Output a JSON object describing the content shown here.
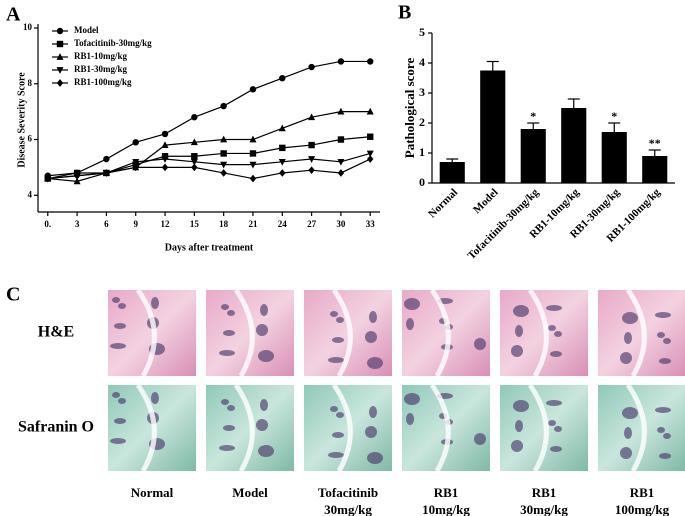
{
  "chart_data": [
    {
      "type": "line",
      "panel_label": "A",
      "xlabel": "Days after treatment",
      "ylabel": "Disease Severity Score",
      "x": [
        0,
        3,
        6,
        9,
        12,
        15,
        18,
        21,
        24,
        27,
        30,
        33
      ],
      "xlim": [
        -1,
        34
      ],
      "xticks": [
        {
          "value": 0,
          "label": "0."
        },
        3,
        6,
        9,
        12,
        15,
        18,
        21,
        24,
        27,
        30,
        33
      ],
      "ylim": [
        3.4,
        10
      ],
      "yticks": [
        4,
        6,
        8,
        10
      ],
      "legend": "upper left",
      "series": [
        {
          "name": "Model",
          "color": "#000000",
          "marker": "circle",
          "values": [
            4.7,
            4.8,
            5.3,
            5.9,
            6.2,
            6.8,
            7.2,
            7.8,
            8.2,
            8.6,
            8.8,
            8.8
          ]
        },
        {
          "name": "Tofacitinib-30mg/kg",
          "color": "#000000",
          "marker": "square",
          "values": [
            4.6,
            4.8,
            4.8,
            5.1,
            5.4,
            5.4,
            5.5,
            5.5,
            5.7,
            5.8,
            6.0,
            6.1
          ]
        },
        {
          "name": "RB1-10mg/kg",
          "color": "#000000",
          "marker": "triangle-up",
          "values": [
            4.6,
            4.5,
            4.8,
            5.0,
            5.8,
            5.9,
            6.0,
            6.0,
            6.4,
            6.8,
            7.0,
            7.0
          ]
        },
        {
          "name": "RB1-30mg/kg",
          "color": "#000000",
          "marker": "triangle-down",
          "values": [
            4.6,
            4.7,
            4.8,
            5.2,
            5.3,
            5.2,
            5.1,
            5.1,
            5.2,
            5.3,
            5.2,
            5.5
          ]
        },
        {
          "name": "RB1-100mg/kg",
          "color": "#000000",
          "marker": "diamond",
          "values": [
            4.6,
            4.7,
            4.8,
            5.0,
            5.0,
            5.0,
            4.8,
            4.6,
            4.8,
            4.9,
            4.8,
            5.3
          ]
        }
      ]
    },
    {
      "type": "bar",
      "panel_label": "B",
      "ylabel": "Pathological score",
      "categories": [
        "Normal",
        "Model",
        "Tofacitinib-30mg/kg",
        "RB1-10mg/kg",
        "RB1-30mg/kg",
        "RB1-100mg/kg"
      ],
      "values": [
        0.7,
        3.75,
        1.8,
        2.5,
        1.7,
        0.9
      ],
      "errors": [
        0.1,
        0.3,
        0.2,
        0.3,
        0.3,
        0.2
      ],
      "color": "#000000",
      "ylim": [
        0,
        5
      ],
      "yticks": [
        0,
        1,
        2,
        3,
        4,
        5
      ],
      "annotations": [
        {
          "category": "Tofacitinib-30mg/kg",
          "text": "*"
        },
        {
          "category": "RB1-30mg/kg",
          "text": "*"
        },
        {
          "category": "RB1-100mg/kg",
          "text": "**"
        }
      ]
    }
  ],
  "histology": {
    "panel_label": "C",
    "rows": [
      "H&E",
      "Safranin O"
    ],
    "columns": [
      [
        "Normal"
      ],
      [
        "Model"
      ],
      [
        "Tofacitinib",
        "30mg/kg"
      ],
      [
        "RB1",
        "10mg/kg"
      ],
      [
        "RB1",
        "30mg/kg"
      ],
      [
        "RB1",
        "100mg/kg"
      ]
    ]
  }
}
